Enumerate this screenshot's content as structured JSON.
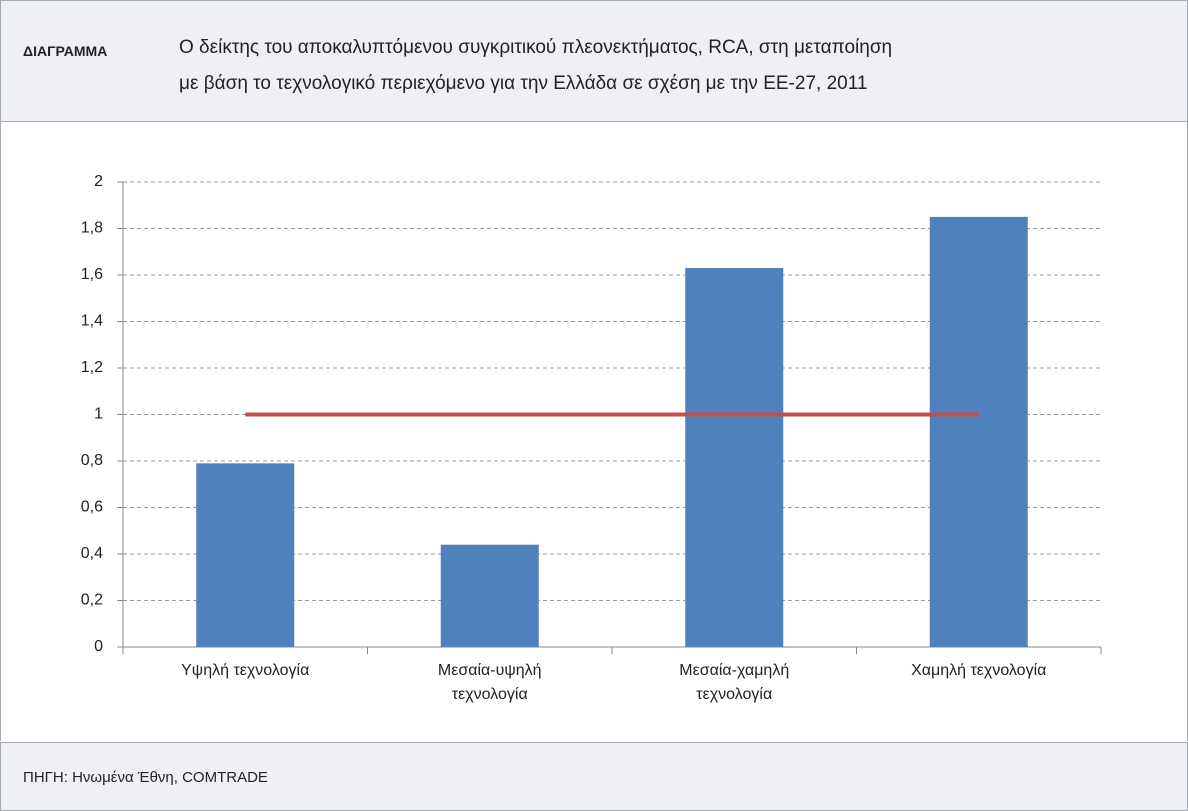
{
  "header": {
    "label": "ΔΙΑΓΡΑΜΜΑ",
    "title": [
      "Ο δείκτης του αποκαλυπτόμενου συγκριτικού πλεονεκτήματος, RCA, στη μεταποίηση",
      "με βάση το τεχνολογικό περιεχόμενο για την Ελλάδα σε σχέση με την ΕΕ-27, 2011"
    ]
  },
  "chart_data": {
    "type": "bar",
    "categories": [
      "Υψηλή τεχνολογία",
      "Μεσαία-υψηλή τεχνολογία",
      "Μεσαία-χαμηλή τεχνολογία",
      "Χαμηλή τεχνολογία"
    ],
    "series": [
      {
        "type": "bar",
        "color": "#4f81bd",
        "values": [
          0.79,
          0.44,
          1.63,
          1.85
        ]
      },
      {
        "type": "line",
        "color": "#c0504d",
        "values": [
          1,
          1,
          1,
          1
        ]
      }
    ],
    "ylim": [
      0,
      2
    ],
    "yticks": [
      0,
      {
        "value": 0.2,
        "label": "0,2"
      },
      {
        "value": 0.4,
        "label": "0,4"
      },
      {
        "value": 0.6,
        "label": "0,6"
      },
      {
        "value": 0.8,
        "label": "0,8"
      },
      1,
      {
        "value": 1.2,
        "label": "1,2"
      },
      {
        "value": 1.4,
        "label": "1,4"
      },
      {
        "value": 1.6,
        "label": "1,6"
      },
      {
        "value": 1.8,
        "label": "1,8"
      },
      2
    ],
    "grid": true
  },
  "footer": {
    "source": "ΠΗΓΗ: Ηνωμένα Έθνη, COMTRADE"
  }
}
